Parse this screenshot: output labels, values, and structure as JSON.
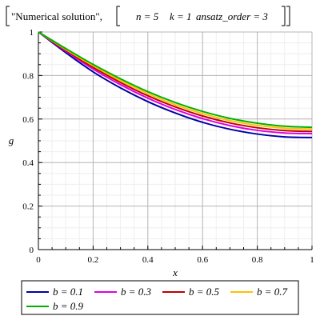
{
  "chart_data": {
    "type": "line",
    "title_parts": {
      "quote": "\"Numerical solution\",",
      "n": "n = 5",
      "k": "k = 1",
      "ansatz": "ansatz_order = 3"
    },
    "xlabel": "x",
    "ylabel": "g",
    "xlim": [
      0,
      1
    ],
    "ylim": [
      0,
      1
    ],
    "xticks": [
      "0",
      "0.2",
      "0.4",
      "0.6",
      "0.8",
      "1"
    ],
    "yticks": [
      "0",
      "0.2",
      "0.4",
      "0.6",
      "0.8",
      "1"
    ],
    "grid": true,
    "legend_position": "bottom",
    "series": [
      {
        "name": "b = 0.1",
        "color": "#0000a8",
        "x": [
          0,
          0.1,
          0.2,
          0.3,
          0.4,
          0.5,
          0.6,
          0.7,
          0.8,
          0.9,
          1.0
        ],
        "y": [
          1.0,
          0.905,
          0.817,
          0.743,
          0.68,
          0.628,
          0.585,
          0.553,
          0.531,
          0.518,
          0.515
        ]
      },
      {
        "name": "b = 0.3",
        "color": "#e000e0",
        "x": [
          0,
          0.1,
          0.2,
          0.3,
          0.4,
          0.5,
          0.6,
          0.7,
          0.8,
          0.9,
          1.0
        ],
        "y": [
          1.0,
          0.912,
          0.83,
          0.758,
          0.696,
          0.644,
          0.602,
          0.57,
          0.548,
          0.536,
          0.533
        ]
      },
      {
        "name": "b = 0.5",
        "color": "#c00000",
        "x": [
          0,
          0.1,
          0.2,
          0.3,
          0.4,
          0.5,
          0.6,
          0.7,
          0.8,
          0.9,
          1.0
        ],
        "y": [
          1.0,
          0.916,
          0.838,
          0.768,
          0.707,
          0.656,
          0.614,
          0.582,
          0.56,
          0.547,
          0.543
        ]
      },
      {
        "name": "b = 0.7",
        "color": "#ffc000",
        "x": [
          0,
          0.1,
          0.2,
          0.3,
          0.4,
          0.5,
          0.6,
          0.7,
          0.8,
          0.9,
          1.0
        ],
        "y": [
          1.0,
          0.92,
          0.845,
          0.777,
          0.717,
          0.666,
          0.625,
          0.593,
          0.571,
          0.558,
          0.554
        ]
      },
      {
        "name": "b = 0.9",
        "color": "#00b000",
        "x": [
          0,
          0.1,
          0.2,
          0.3,
          0.4,
          0.5,
          0.6,
          0.7,
          0.8,
          0.9,
          1.0
        ],
        "y": [
          1.0,
          0.924,
          0.851,
          0.785,
          0.726,
          0.676,
          0.635,
          0.603,
          0.581,
          0.567,
          0.562
        ]
      }
    ]
  }
}
